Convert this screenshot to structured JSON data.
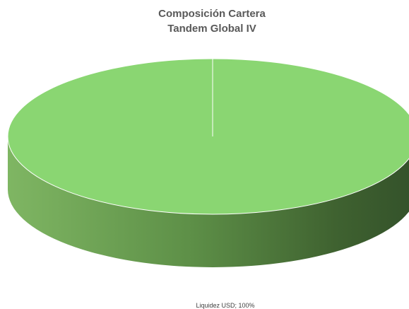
{
  "chart_data": {
    "type": "pie",
    "title": [
      "Composición Cartera",
      "Tandem Global IV"
    ],
    "categories": [
      "Liquidez USD"
    ],
    "values": [
      100
    ],
    "data_labels": [
      "Liquidez USD; 100%"
    ],
    "legend": "none",
    "style": "3d"
  },
  "colors": {
    "top": "#8ad672",
    "edge_light": "#7cb45f",
    "edge_dark": "#3e5f2e",
    "title": "#595959"
  }
}
